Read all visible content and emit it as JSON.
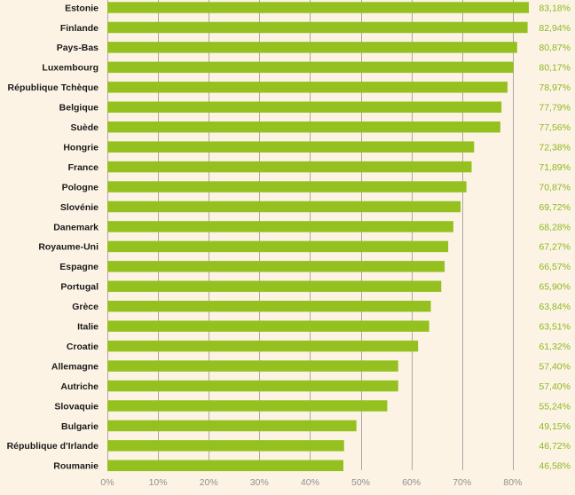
{
  "chart_data": {
    "type": "bar",
    "orientation": "horizontal",
    "title": "",
    "xlabel": "",
    "ylabel": "",
    "xlim": [
      0,
      90
    ],
    "grid": "vertical",
    "bar_color": "#94c11f",
    "value_label_color": "#8cb81e",
    "background_color": "#fdf3e5",
    "categories": [
      "Estonie",
      "Finlande",
      "Pays-Bas",
      "Luxembourg",
      "République Tchèque",
      "Belgique",
      "Suède",
      "Hongrie",
      "France",
      "Pologne",
      "Slovénie",
      "Danemark",
      "Royaume-Uni",
      "Espagne",
      "Portugal",
      "Grèce",
      "Italie",
      "Croatie",
      "Allemagne",
      "Autriche",
      "Slovaquie",
      "Bulgarie",
      "République d'Irlande",
      "Roumanie"
    ],
    "values": [
      83.18,
      82.94,
      80.87,
      80.17,
      78.97,
      77.79,
      77.56,
      72.38,
      71.89,
      70.87,
      69.72,
      68.28,
      67.27,
      66.57,
      65.9,
      63.84,
      63.51,
      61.32,
      57.4,
      57.4,
      55.24,
      49.15,
      46.72,
      46.58
    ],
    "value_labels": [
      "83,18%",
      "82,94%",
      "80,87%",
      "80,17%",
      "78,97%",
      "77,79%",
      "77,56%",
      "72,38%",
      "71,89%",
      "70,87%",
      "69,72%",
      "68,28%",
      "67,27%",
      "66,57%",
      "65,90%",
      "63,84%",
      "63,51%",
      "61,32%",
      "57,40%",
      "57,40%",
      "55,24%",
      "49,15%",
      "46,72%",
      "46,58%"
    ],
    "ticks": [
      0,
      10,
      20,
      30,
      40,
      50,
      60,
      70,
      80
    ],
    "tick_labels": [
      "0%",
      "10%",
      "20%",
      "30%",
      "40%",
      "50%",
      "60%",
      "70%",
      "80%"
    ]
  }
}
